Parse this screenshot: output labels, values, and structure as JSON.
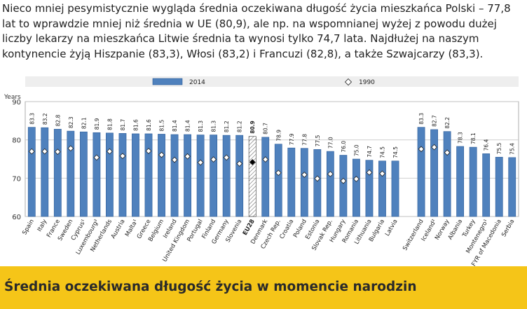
{
  "intro_text": "Nieco mniej pesymistycznie wygląda średnia oczekiwana długość życia mieszkańca Polski – 77,8 lat to wprawdzie mniej niż średnia w UE (80,9), ale np. na wspomnianej wyżej z powodu dużej liczby lekarzy na mieszkańca Litwie średnia ta wynosi tylko 74,7 lata. Najdłużej na naszym kontynencie żyją Hiszpanie (83,3), Włosi (83,2) i Francuzi (82,8), a także Szwajcarzy (83,3).",
  "footer_title": "Średnia oczekiwana długość życia w momencie narodzin",
  "colors": {
    "bar": "#4f81bd",
    "bar_edge": "#2e5d9a",
    "eu_bar": "#ffffff",
    "marker": "#ffffff",
    "eu_marker": "#000000",
    "footer_bg": "#f5c518"
  },
  "chart_data": {
    "type": "bar",
    "ylabel": "Years",
    "ylim": [
      60,
      90
    ],
    "yticks": [
      60,
      70,
      80,
      90
    ],
    "grid": true,
    "legend_position": "top",
    "series": [
      {
        "name": "2014",
        "style": "bar"
      },
      {
        "name": "1990",
        "style": "diamond-marker"
      }
    ],
    "categories": [
      "Spain",
      "Italy",
      "France",
      "Sweden",
      "Cyprus¹",
      "Luxembourg²",
      "Netherlands",
      "Austria",
      "Malta¹",
      "Greece",
      "Belgium",
      "Ireland",
      "United Kingdom",
      "Portugal",
      "Finland",
      "Germany",
      "Slovenia",
      "EU28",
      "Denmark",
      "Czech Rep.",
      "Croatia",
      "Poland",
      "Estonia",
      "Slovak Rep.",
      "Hungary",
      "Romania",
      "Lithuania",
      "Bulgaria",
      "Latvia",
      "",
      "Switzerland",
      "Iceland²",
      "Norway",
      "Albania",
      "Turkey",
      "Montenegro¹",
      "FYR of Macedonia",
      "Serbia"
    ],
    "value_labels": [
      "83.3",
      "83.2",
      "82.8",
      "82.3",
      "82.1",
      "81.9",
      "81.8",
      "81.7",
      "81.6",
      "81.6",
      "81.5",
      "81.4",
      "81.4",
      "81.3",
      "81.3",
      "81.2",
      "81.2",
      "80.9",
      "80.7",
      "78.9",
      "77.9",
      "77.8",
      "77.5",
      "77.0",
      "76.0",
      "75.0",
      "74.7",
      "74.5",
      "74.5",
      "",
      "83.3",
      "82.7",
      "82.2",
      "78.3",
      "78.1",
      "76.4",
      "75.5",
      "75.4"
    ],
    "values_2014": [
      83.3,
      83.2,
      82.8,
      82.3,
      82.1,
      81.9,
      81.8,
      81.7,
      81.6,
      81.6,
      81.5,
      81.4,
      81.4,
      81.3,
      81.3,
      81.2,
      81.2,
      80.9,
      80.7,
      78.9,
      77.9,
      77.8,
      77.5,
      77.0,
      76.0,
      75.0,
      74.7,
      74.5,
      74.5,
      null,
      83.3,
      82.7,
      82.2,
      78.3,
      78.1,
      76.4,
      75.5,
      75.4
    ],
    "values_1990": [
      77.0,
      77.0,
      76.9,
      77.8,
      null,
      75.4,
      77.0,
      75.8,
      null,
      77.1,
      76.1,
      74.8,
      75.7,
      74.1,
      74.9,
      75.4,
      73.8,
      74.2,
      74.9,
      71.4,
      null,
      70.9,
      69.9,
      71.1,
      69.3,
      69.8,
      71.5,
      71.2,
      null,
      null,
      77.6,
      78.1,
      76.7,
      null,
      null,
      null,
      null,
      null
    ],
    "highlight": "EU28"
  }
}
